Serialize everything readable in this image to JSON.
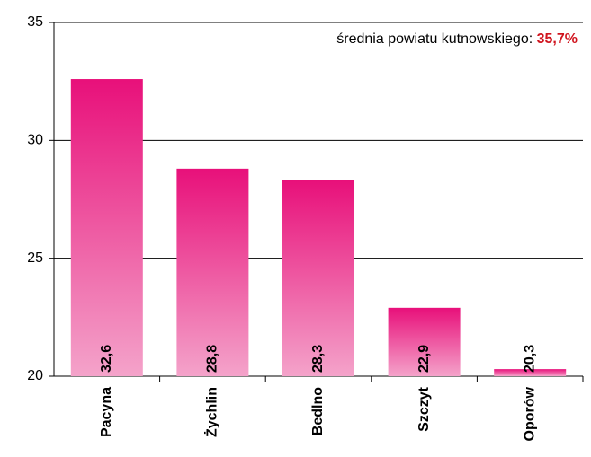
{
  "chart_data": {
    "type": "bar",
    "categories": [
      "Pacyna",
      "Żychlin",
      "Bedlno",
      "Szczyt",
      "Oporów"
    ],
    "values": [
      32.6,
      28.8,
      28.3,
      22.9,
      20.3
    ],
    "value_labels": [
      "32,6",
      "28,8",
      "28,3",
      "22,9",
      "20,3"
    ],
    "color": "#e8107a",
    "ylim": [
      20,
      35
    ],
    "yticks": [
      20,
      25,
      30,
      35
    ],
    "grid": true,
    "annotation": "średnia powiatu kutnowskiego: ",
    "annotation_value": "35,7%",
    "annotation_color": "#d0141e"
  }
}
